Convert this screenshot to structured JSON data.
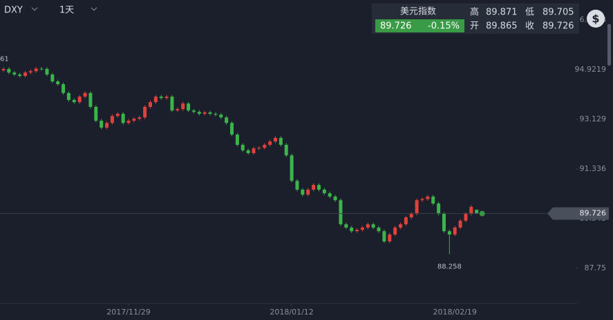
{
  "header": {
    "symbol": "DXY",
    "period": "1天"
  },
  "quote": {
    "name": "美元指数",
    "price": "89.726",
    "change": "-0.15%",
    "high_label": "高",
    "high": "89.871",
    "low_label": "低",
    "low": "89.705",
    "open_label": "开",
    "open": "89.865",
    "close_label": "收",
    "close": "89.726"
  },
  "chart_data": {
    "type": "candlestick",
    "up_color": "#e0413a",
    "down_color": "#3bb44a",
    "categories": [
      null,
      null,
      null,
      null,
      null,
      null,
      null,
      null,
      null,
      null,
      null,
      null,
      null,
      null,
      null,
      null,
      null,
      null,
      null,
      null,
      null,
      null,
      null,
      "2017/11/29",
      null,
      null,
      null,
      null,
      null,
      null,
      null,
      null,
      null,
      null,
      null,
      null,
      null,
      null,
      null,
      null,
      null,
      null,
      null,
      null,
      null,
      null,
      null,
      null,
      null,
      null,
      null,
      null,
      null,
      "2018/01/12",
      null,
      null,
      null,
      null,
      null,
      null,
      null,
      null,
      null,
      null,
      null,
      null,
      null,
      null,
      null,
      null,
      null,
      null,
      null,
      null,
      null,
      null,
      null,
      null,
      null,
      null,
      null,
      null,
      null,
      "2018/02/19",
      null,
      null,
      null,
      null
    ],
    "open": [
      94.9,
      94.95,
      94.82,
      94.75,
      94.7,
      94.82,
      94.87,
      94.96,
      94.95,
      94.75,
      94.5,
      94.4,
      94.08,
      93.83,
      93.75,
      93.95,
      94.08,
      93.58,
      93.08,
      92.83,
      93.0,
      93.25,
      93.33,
      93.0,
      93.08,
      93.15,
      93.2,
      93.58,
      93.75,
      93.95,
      93.9,
      93.95,
      93.45,
      93.5,
      93.7,
      93.45,
      93.4,
      93.33,
      93.38,
      93.33,
      93.3,
      93.2,
      93.0,
      92.58,
      92.21,
      92.01,
      91.91,
      92.08,
      92.1,
      92.21,
      92.33,
      92.46,
      92.21,
      91.83,
      90.91,
      90.59,
      90.41,
      90.59,
      90.76,
      90.59,
      90.46,
      90.34,
      90.21,
      89.34,
      89.22,
      89.09,
      89.14,
      89.22,
      89.34,
      89.22,
      89.09,
      88.72,
      88.97,
      89.22,
      89.34,
      89.59,
      89.72,
      90.21,
      90.25,
      90.34,
      90.09,
      89.72,
      89.09,
      88.97,
      89.22,
      89.47,
      89.72,
      89.865
    ],
    "high": [
      95.01,
      95.01,
      94.88,
      94.81,
      94.88,
      94.93,
      95.02,
      95.02,
      95.01,
      94.81,
      94.56,
      94.46,
      94.14,
      93.89,
      94.01,
      94.14,
      94.14,
      93.64,
      93.14,
      93.06,
      93.31,
      93.39,
      93.39,
      93.14,
      93.21,
      93.26,
      93.64,
      93.81,
      94.01,
      94.01,
      94.01,
      94.01,
      93.56,
      93.76,
      93.76,
      93.51,
      93.46,
      93.44,
      93.44,
      93.39,
      93.36,
      93.26,
      93.06,
      92.64,
      92.27,
      92.07,
      92.14,
      92.16,
      92.27,
      92.39,
      92.52,
      92.52,
      92.27,
      91.89,
      90.97,
      90.65,
      90.65,
      90.82,
      90.82,
      90.65,
      90.52,
      90.4,
      90.27,
      89.4,
      89.28,
      89.2,
      89.28,
      89.4,
      89.4,
      89.28,
      89.15,
      89.03,
      89.28,
      89.4,
      89.65,
      89.78,
      90.27,
      90.31,
      90.4,
      90.4,
      90.15,
      89.78,
      89.15,
      89.28,
      89.53,
      89.78,
      90.03,
      89.871
    ],
    "low": [
      94.84,
      94.76,
      94.69,
      94.64,
      94.64,
      94.76,
      94.81,
      94.89,
      94.69,
      94.44,
      94.34,
      94.02,
      93.77,
      93.69,
      93.69,
      93.89,
      93.52,
      93.02,
      92.77,
      92.77,
      92.94,
      93.19,
      92.94,
      92.94,
      93.02,
      93.09,
      93.14,
      93.52,
      93.69,
      93.84,
      93.84,
      93.39,
      93.39,
      93.44,
      93.39,
      93.34,
      93.27,
      93.27,
      93.27,
      93.24,
      93.14,
      92.94,
      92.52,
      92.15,
      91.95,
      91.85,
      91.85,
      92.02,
      92.04,
      92.15,
      92.27,
      92.15,
      91.77,
      90.85,
      90.53,
      90.35,
      90.35,
      90.53,
      90.53,
      90.4,
      90.28,
      90.15,
      89.28,
      89.16,
      89.03,
      89.03,
      89.08,
      89.16,
      89.16,
      89.03,
      88.66,
      88.66,
      88.91,
      89.16,
      89.28,
      89.53,
      89.66,
      90.15,
      90.19,
      90.03,
      89.66,
      89.03,
      88.258,
      88.91,
      89.16,
      89.41,
      89.66,
      89.705
    ],
    "close": [
      94.95,
      94.82,
      94.75,
      94.7,
      94.82,
      94.87,
      94.96,
      94.95,
      94.75,
      94.5,
      94.4,
      94.08,
      93.83,
      93.75,
      93.95,
      94.08,
      93.58,
      93.08,
      92.83,
      93.0,
      93.25,
      93.33,
      93.0,
      93.08,
      93.15,
      93.2,
      93.58,
      93.75,
      93.95,
      93.9,
      93.95,
      93.45,
      93.5,
      93.7,
      93.45,
      93.4,
      93.33,
      93.38,
      93.33,
      93.3,
      93.2,
      93.0,
      92.58,
      92.21,
      92.01,
      91.91,
      92.08,
      92.1,
      92.21,
      92.33,
      92.46,
      92.21,
      91.83,
      90.91,
      90.59,
      90.41,
      90.59,
      90.76,
      90.59,
      90.46,
      90.34,
      90.21,
      89.34,
      89.22,
      89.09,
      89.14,
      89.22,
      89.34,
      89.22,
      89.09,
      88.72,
      88.97,
      89.22,
      89.34,
      89.59,
      89.72,
      90.21,
      90.25,
      90.34,
      90.09,
      89.72,
      89.09,
      88.97,
      89.22,
      89.47,
      89.72,
      89.97,
      89.726
    ],
    "ylim": [
      86.48,
      97.44
    ],
    "yticks": [
      96.7148,
      94.9219,
      93.129,
      91.336,
      89.543,
      87.75
    ],
    "annotations": [
      "61"
    ],
    "grid": false
  }
}
